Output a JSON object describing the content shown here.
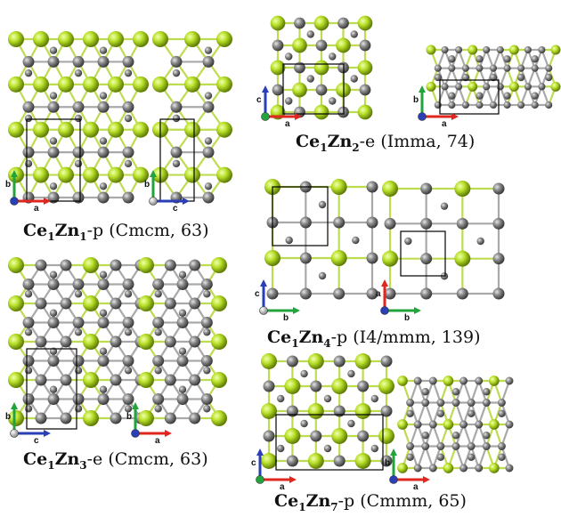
{
  "structures": [
    {
      "id": "ce1zn1",
      "formula": [
        [
          "Ce",
          "1"
        ],
        [
          "Zn",
          "1"
        ]
      ],
      "suffix": "-p",
      "spacegroup": "(Cmcm, 63)",
      "views": [
        {
          "axes": [
            "b",
            "a"
          ],
          "center_atom": "c"
        },
        {
          "axes": [
            "b",
            "c"
          ],
          "center_atom": "a"
        }
      ]
    },
    {
      "id": "ce1zn2",
      "formula": [
        [
          "Ce",
          "1"
        ],
        [
          "Zn",
          "2"
        ]
      ],
      "suffix": "-e",
      "spacegroup": "(Imma, 74)",
      "views": [
        {
          "axes": [
            "c",
            "a"
          ],
          "center_atom": "b"
        },
        {
          "axes": [
            "b",
            "a"
          ],
          "center_atom": "c"
        }
      ]
    },
    {
      "id": "ce1zn3",
      "formula": [
        [
          "Ce",
          "1"
        ],
        [
          "Zn",
          "3"
        ]
      ],
      "suffix": "-e",
      "spacegroup": "(Cmcm, 63)",
      "views": [
        {
          "axes": [
            "b",
            "c"
          ],
          "center_atom": "a"
        },
        {
          "axes": [
            "b",
            "a"
          ],
          "center_atom": "c"
        }
      ]
    },
    {
      "id": "ce1zn4",
      "formula": [
        [
          "Ce",
          "1"
        ],
        [
          "Zn",
          "4"
        ]
      ],
      "suffix": "-p",
      "spacegroup": "(I4/mmm, 139)",
      "views": [
        {
          "axes": [
            "c",
            "b"
          ],
          "center_atom": "a"
        },
        {
          "axes": [
            "a",
            "b"
          ],
          "center_atom": "c"
        }
      ]
    },
    {
      "id": "ce1zn7",
      "formula": [
        [
          "Ce",
          "1"
        ],
        [
          "Zn",
          "7"
        ]
      ],
      "suffix": "-p",
      "spacegroup": "(Cmmm, 65)",
      "views": [
        {
          "axes": [
            "c",
            "a"
          ],
          "center_atom": "b"
        },
        {
          "axes": [
            "b",
            "a"
          ],
          "center_atom": "c"
        }
      ]
    }
  ],
  "colors": {
    "ce_atom": "#a6d21c",
    "zn_atom": "#7c7c7c",
    "bond": "#9a9a9a",
    "axis_green": "#22a33c",
    "axis_red": "#e0261e",
    "axis_blue": "#2a3fb5"
  }
}
